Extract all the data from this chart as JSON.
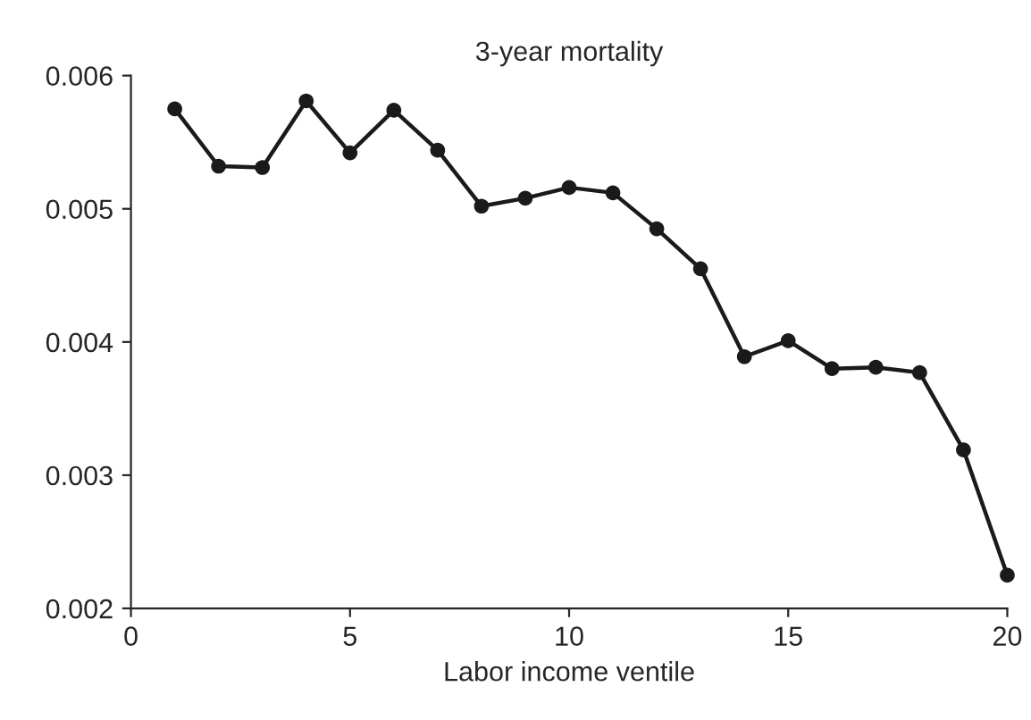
{
  "chart_data": {
    "type": "line",
    "title": "3-year mortality",
    "xlabel": "Labor income ventile",
    "x": [
      1,
      2,
      3,
      4,
      5,
      6,
      7,
      8,
      9,
      10,
      11,
      12,
      13,
      14,
      15,
      16,
      17,
      18,
      19,
      20
    ],
    "series": [
      {
        "color": "#1a1a1a",
        "values": [
          0.00575,
          0.00532,
          0.00531,
          0.00581,
          0.00542,
          0.00574,
          0.00544,
          0.00502,
          0.00508,
          0.00516,
          0.00512,
          0.00485,
          0.00455,
          0.00389,
          0.00401,
          0.0038,
          0.00381,
          0.00377,
          0.00319,
          0.00225
        ]
      }
    ],
    "xlim": [
      0,
      20
    ],
    "xticks": [
      0,
      5,
      10,
      15,
      20
    ],
    "ylim": [
      0.002,
      0.006
    ],
    "yticks": [
      {
        "value": 0.002,
        "label": "0.002"
      },
      {
        "value": 0.003,
        "label": "0.003"
      },
      {
        "value": 0.004,
        "label": "0.004"
      },
      {
        "value": 0.005,
        "label": "0.005"
      },
      {
        "value": 0.006,
        "label": "0.006"
      }
    ],
    "marker": "circle",
    "line_style": "solid",
    "grid": false,
    "legend": false
  }
}
